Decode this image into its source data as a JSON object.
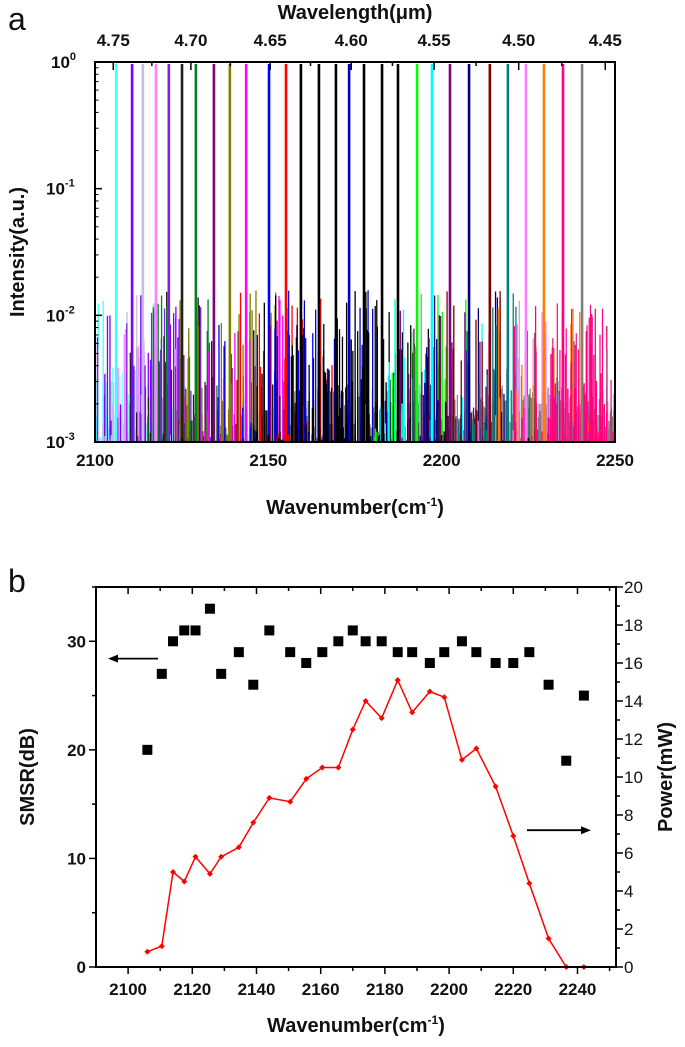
{
  "chart_data": [
    {
      "panel_label": "a",
      "type": "line",
      "xlabel": "Wavenumber(cm",
      "xlabel_sup": "-1",
      "xlabel_end": ")",
      "x2label": "Wavelength(μm)",
      "ylabel": "Intensity(a.u.)",
      "xlim": [
        2100,
        2250
      ],
      "ylim": [
        0.001,
        1
      ],
      "yscale": "log",
      "x_ticks": [
        "2100",
        "2150",
        "2200",
        "2250"
      ],
      "x2_ticks": [
        "4.75",
        "4.70",
        "4.65",
        "4.60",
        "4.55",
        "4.50",
        "4.45"
      ],
      "y_ticks": [
        {
          "base": "10",
          "exp": "0"
        },
        {
          "base": "10",
          "exp": "-1"
        },
        {
          "base": "10",
          "exp": "-2"
        },
        {
          "base": "10",
          "exp": "-3"
        }
      ],
      "grid": false,
      "peak_intensity": 1,
      "peaks": [
        {
          "x": 2106.1,
          "color": "#40ffff"
        },
        {
          "x": 2110.7,
          "color": "#8000ff"
        },
        {
          "x": 2113.8,
          "color": "#c0c0e0"
        },
        {
          "x": 2117.6,
          "color": "#ff80ff"
        },
        {
          "x": 2121.3,
          "color": "#8020e0"
        },
        {
          "x": 2125.1,
          "color": "#202020"
        },
        {
          "x": 2129.1,
          "color": "#008020"
        },
        {
          "x": 2134.3,
          "color": "#800080"
        },
        {
          "x": 2138.9,
          "color": "#808000"
        },
        {
          "x": 2143.6,
          "color": "#ff00ff"
        },
        {
          "x": 2150.2,
          "color": "#0000ff"
        },
        {
          "x": 2155.1,
          "color": "#ff0000"
        },
        {
          "x": 2159.4,
          "color": "#000000"
        },
        {
          "x": 2164.6,
          "color": "#000000"
        },
        {
          "x": 2169.5,
          "color": "#000000"
        },
        {
          "x": 2173.3,
          "color": "#0000c0"
        },
        {
          "x": 2177.6,
          "color": "#000000"
        },
        {
          "x": 2182.8,
          "color": "#000000"
        },
        {
          "x": 2187.4,
          "color": "#000000"
        },
        {
          "x": 2192.9,
          "color": "#00ff00"
        },
        {
          "x": 2197.2,
          "color": "#00ffff"
        },
        {
          "x": 2202.4,
          "color": "#800080"
        },
        {
          "x": 2207.9,
          "color": "#000080"
        },
        {
          "x": 2213.9,
          "color": "#800000"
        },
        {
          "x": 2219.1,
          "color": "#008080"
        },
        {
          "x": 2224.3,
          "color": "#ff80ff"
        },
        {
          "x": 2229.5,
          "color": "#ff8000"
        },
        {
          "x": 2235.0,
          "color": "#ff0080"
        },
        {
          "x": 2240.5,
          "color": "#808080"
        }
      ]
    },
    {
      "panel_label": "b",
      "type": "scatter+line",
      "xlabel": "Wavenumber(cm",
      "xlabel_sup": "-1",
      "xlabel_end": ")",
      "ylabel_left": "SMSR(dB)",
      "ylabel_right": "Power(mW)",
      "xlim": [
        2090,
        2252
      ],
      "ylim_left": [
        0,
        35
      ],
      "ylim_right": [
        0,
        20
      ],
      "x_ticks": [
        "2100",
        "2120",
        "2140",
        "2160",
        "2180",
        "2200",
        "2220",
        "2240"
      ],
      "y_left_ticks": [
        "0",
        "10",
        "20",
        "30"
      ],
      "y_right_ticks": [
        "0",
        "2",
        "4",
        "6",
        "8",
        "10",
        "12",
        "14",
        "16",
        "18",
        "20"
      ],
      "grid": false,
      "series": [
        {
          "axis": "left",
          "marker": "square",
          "color": "#000000",
          "x": [
            2106,
            2110.5,
            2114,
            2117.5,
            2121,
            2125.5,
            2129,
            2134.5,
            2139,
            2144,
            2150.5,
            2155.5,
            2160.5,
            2165.5,
            2170,
            2174,
            2179,
            2184,
            2188.5,
            2194,
            2198.5,
            2204,
            2208.5,
            2214.5,
            2220,
            2225,
            2231,
            2236.5,
            2242
          ],
          "values": [
            20,
            27,
            30,
            31,
            31,
            33,
            27,
            29,
            26,
            31,
            29,
            28,
            29,
            30,
            31,
            30,
            30,
            29,
            29,
            28,
            29,
            30,
            29,
            28,
            28,
            29,
            26,
            19,
            25
          ]
        },
        {
          "axis": "right",
          "marker": "diamond-line",
          "color": "#ff0000",
          "x": [
            2106,
            2110.5,
            2114,
            2117.5,
            2121,
            2125.5,
            2129,
            2134.5,
            2139,
            2144,
            2150.5,
            2155.5,
            2160.5,
            2165.5,
            2170,
            2174,
            2179,
            2184,
            2188.5,
            2194,
            2198.5,
            2204,
            2208.5,
            2214.5,
            2220,
            2225,
            2231,
            2236.5,
            2242
          ],
          "values": [
            0.8,
            1.1,
            5.0,
            4.5,
            5.8,
            4.9,
            5.8,
            6.3,
            7.6,
            8.9,
            8.7,
            9.9,
            10.5,
            10.5,
            12.5,
            14.0,
            13.1,
            15.1,
            13.4,
            14.5,
            14.2,
            10.9,
            11.5,
            9.5,
            6.9,
            4.4,
            1.5,
            0.0,
            0.0
          ]
        }
      ]
    }
  ]
}
